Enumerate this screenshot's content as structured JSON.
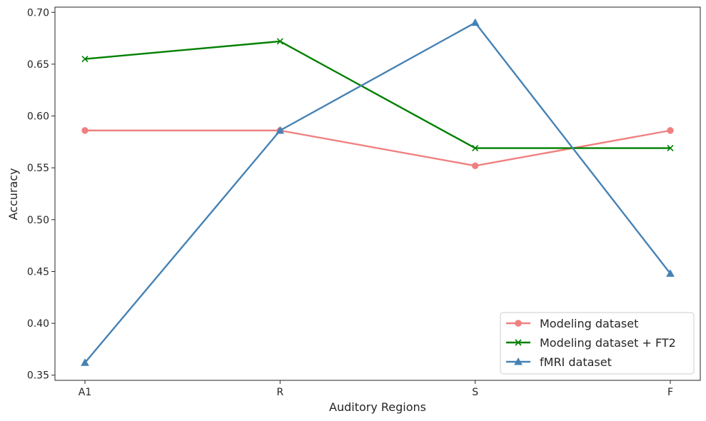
{
  "chart_data": {
    "type": "line",
    "title": "",
    "xlabel": "Auditory Regions",
    "ylabel": "Accuracy",
    "categories": [
      "A1",
      "R",
      "S",
      "F"
    ],
    "ylim": [
      0.345,
      0.705
    ],
    "yticks": [
      "0.35",
      "0.40",
      "0.45",
      "0.50",
      "0.55",
      "0.60",
      "0.65",
      "0.70"
    ],
    "grid": false,
    "legend_position": "lower-right",
    "series": [
      {
        "name": "Modeling dataset",
        "color": "#f08080",
        "marker": "circle",
        "values": [
          0.586,
          0.586,
          0.552,
          0.586
        ]
      },
      {
        "name": "Modeling dataset + FT2",
        "color": "#008000",
        "marker": "x",
        "values": [
          0.655,
          0.672,
          0.569,
          0.569
        ]
      },
      {
        "name": "fMRI dataset",
        "color": "#4682b4",
        "marker": "triangle",
        "values": [
          0.362,
          0.586,
          0.69,
          0.448
        ]
      }
    ]
  }
}
